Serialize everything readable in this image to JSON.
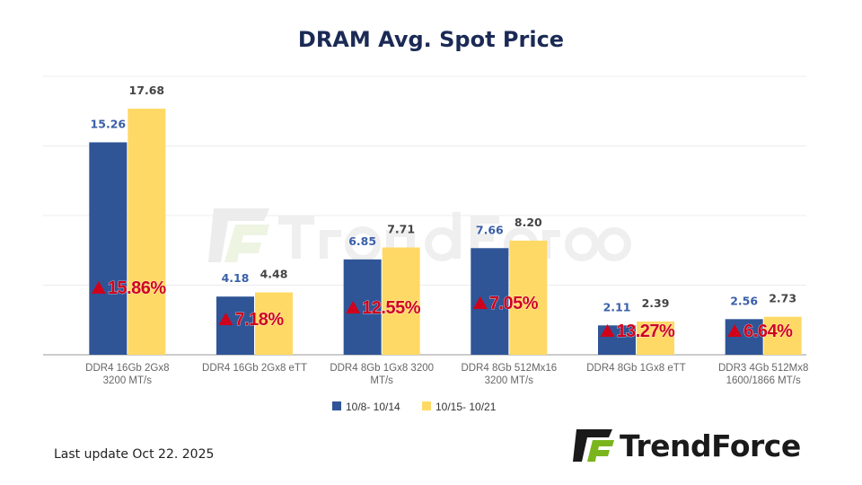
{
  "chart_data": {
    "type": "bar",
    "title": "DRAM Avg. Spot Price",
    "categories": [
      [
        "DDR4 16Gb 2Gx8",
        "3200 MT/s"
      ],
      [
        "DDR4 16Gb 2Gx8 eTT"
      ],
      [
        "DDR4 8Gb 1Gx8 3200",
        "MT/s"
      ],
      [
        "DDR4 8Gb 512Mx16",
        "3200 MT/s"
      ],
      [
        "DDR4 8Gb 1Gx8 eTT"
      ],
      [
        "DDR3 4Gb 512Mx8",
        "1600/1866  MT/s"
      ]
    ],
    "series": [
      {
        "name": "10/8- 10/14",
        "color": "#2f5597",
        "label_color": "#3a5fa8",
        "values": [
          15.26,
          4.18,
          6.85,
          7.66,
          2.11,
          2.56
        ],
        "labels": [
          "15.26",
          "4.18",
          "6.85",
          "7.66",
          "2.11",
          "2.56"
        ]
      },
      {
        "name": "10/15- 10/21",
        "color": "#ffd966",
        "label_color": "#444444",
        "values": [
          17.68,
          4.48,
          7.71,
          8.2,
          2.39,
          2.73
        ],
        "labels": [
          "17.68",
          "4.48",
          "7.71",
          "8.20",
          "2.39",
          "2.73"
        ]
      }
    ],
    "changes": [
      "15.86%",
      "7.18%",
      "12.55%",
      "7.05%",
      "13.27%",
      "6.64%"
    ],
    "change_direction": "up",
    "change_color": "#d0021b",
    "ylim": [
      0,
      20
    ],
    "grid": true,
    "gridlines": [
      0,
      5,
      10,
      15,
      20
    ],
    "y_axis_labels_shown": false,
    "legend_position": "bottom"
  },
  "footer": {
    "last_update": "Last update Oct 22.  2025"
  },
  "logo": {
    "text": "TrendForce",
    "watermark_text": "TrendForce",
    "green": "#7ab51d"
  }
}
